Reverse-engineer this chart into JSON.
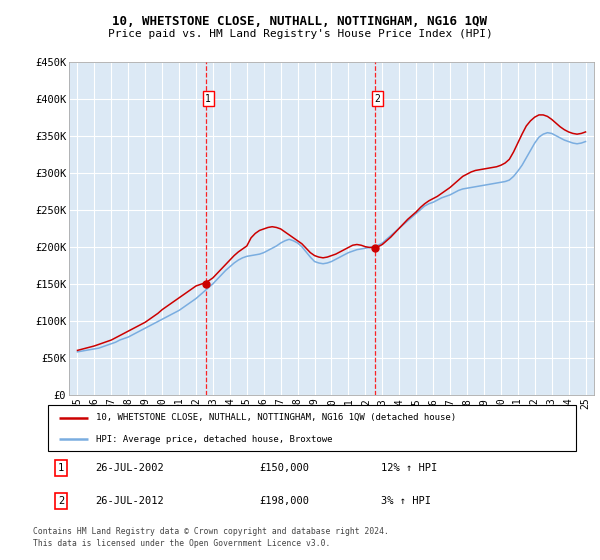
{
  "title": "10, WHETSTONE CLOSE, NUTHALL, NOTTINGHAM, NG16 1QW",
  "subtitle": "Price paid vs. HM Land Registry's House Price Index (HPI)",
  "legend_line1": "10, WHETSTONE CLOSE, NUTHALL, NOTTINGHAM, NG16 1QW (detached house)",
  "legend_line2": "HPI: Average price, detached house, Broxtowe",
  "transactions": [
    {
      "num": "1",
      "date": "26-JUL-2002",
      "price": "£150,000",
      "hpi": "12% ↑ HPI"
    },
    {
      "num": "2",
      "date": "26-JUL-2012",
      "price": "£198,000",
      "hpi": "3% ↑ HPI"
    }
  ],
  "footnote1": "Contains HM Land Registry data © Crown copyright and database right 2024.",
  "footnote2": "This data is licensed under the Open Government Licence v3.0.",
  "ylim": [
    0,
    450000
  ],
  "yticks": [
    0,
    50000,
    100000,
    150000,
    200000,
    250000,
    300000,
    350000,
    400000,
    450000
  ],
  "ytick_labels": [
    "£0",
    "£50K",
    "£100K",
    "£150K",
    "£200K",
    "£250K",
    "£300K",
    "£350K",
    "£400K",
    "£450K"
  ],
  "xlim_start": 1994.5,
  "xlim_end": 2025.5,
  "xticks": [
    1995,
    1996,
    1997,
    1998,
    1999,
    2000,
    2001,
    2002,
    2003,
    2004,
    2005,
    2006,
    2007,
    2008,
    2009,
    2010,
    2011,
    2012,
    2013,
    2014,
    2015,
    2016,
    2017,
    2018,
    2019,
    2020,
    2021,
    2022,
    2023,
    2024,
    2025
  ],
  "xtick_labels": [
    "95",
    "96",
    "97",
    "98",
    "99",
    "00",
    "01",
    "02",
    "03",
    "04",
    "05",
    "06",
    "07",
    "08",
    "09",
    "10",
    "11",
    "12",
    "13",
    "14",
    "15",
    "16",
    "17",
    "18",
    "19",
    "20",
    "21",
    "22",
    "23",
    "24",
    "25"
  ],
  "vline_x": [
    2002.57,
    2012.57
  ],
  "vline_labels": [
    "1",
    "2"
  ],
  "transaction_prices": [
    150000,
    198000
  ],
  "transaction_years": [
    2002.57,
    2012.57
  ],
  "plot_bg": "#dce9f5",
  "grid_color": "#ffffff",
  "red_line_color": "#cc0000",
  "blue_line_color": "#7aade0",
  "hpi_years": [
    1995.0,
    1995.25,
    1995.5,
    1995.75,
    1996.0,
    1996.25,
    1996.5,
    1996.75,
    1997.0,
    1997.25,
    1997.5,
    1997.75,
    1998.0,
    1998.25,
    1998.5,
    1998.75,
    1999.0,
    1999.25,
    1999.5,
    1999.75,
    2000.0,
    2000.25,
    2000.5,
    2000.75,
    2001.0,
    2001.25,
    2001.5,
    2001.75,
    2002.0,
    2002.25,
    2002.5,
    2002.75,
    2003.0,
    2003.25,
    2003.5,
    2003.75,
    2004.0,
    2004.25,
    2004.5,
    2004.75,
    2005.0,
    2005.25,
    2005.5,
    2005.75,
    2006.0,
    2006.25,
    2006.5,
    2006.75,
    2007.0,
    2007.25,
    2007.5,
    2007.75,
    2008.0,
    2008.25,
    2008.5,
    2008.75,
    2009.0,
    2009.25,
    2009.5,
    2009.75,
    2010.0,
    2010.25,
    2010.5,
    2010.75,
    2011.0,
    2011.25,
    2011.5,
    2011.75,
    2012.0,
    2012.25,
    2012.5,
    2012.75,
    2013.0,
    2013.25,
    2013.5,
    2013.75,
    2014.0,
    2014.25,
    2014.5,
    2014.75,
    2015.0,
    2015.25,
    2015.5,
    2015.75,
    2016.0,
    2016.25,
    2016.5,
    2016.75,
    2017.0,
    2017.25,
    2017.5,
    2017.75,
    2018.0,
    2018.25,
    2018.5,
    2018.75,
    2019.0,
    2019.25,
    2019.5,
    2019.75,
    2020.0,
    2020.25,
    2020.5,
    2020.75,
    2021.0,
    2021.25,
    2021.5,
    2021.75,
    2022.0,
    2022.25,
    2022.5,
    2022.75,
    2023.0,
    2023.25,
    2023.5,
    2023.75,
    2024.0,
    2024.25,
    2024.5,
    2024.75,
    2025.0
  ],
  "hpi_values": [
    58000,
    59000,
    60000,
    61000,
    62000,
    63000,
    65000,
    67000,
    69000,
    71000,
    74000,
    76000,
    78000,
    81000,
    84000,
    87000,
    90000,
    93000,
    96000,
    99000,
    102000,
    105000,
    108000,
    111000,
    114000,
    118000,
    122000,
    126000,
    130000,
    135000,
    140000,
    145000,
    150000,
    156000,
    162000,
    168000,
    173000,
    178000,
    182000,
    185000,
    187000,
    188000,
    189000,
    190000,
    192000,
    195000,
    198000,
    201000,
    205000,
    208000,
    210000,
    208000,
    205000,
    200000,
    193000,
    186000,
    180000,
    178000,
    177000,
    178000,
    180000,
    183000,
    186000,
    189000,
    192000,
    194000,
    196000,
    197000,
    198000,
    199000,
    200000,
    202000,
    205000,
    210000,
    215000,
    220000,
    225000,
    230000,
    235000,
    240000,
    245000,
    250000,
    255000,
    258000,
    260000,
    263000,
    266000,
    268000,
    270000,
    273000,
    276000,
    278000,
    279000,
    280000,
    281000,
    282000,
    283000,
    284000,
    285000,
    286000,
    287000,
    288000,
    290000,
    295000,
    302000,
    310000,
    320000,
    330000,
    340000,
    348000,
    352000,
    354000,
    353000,
    350000,
    347000,
    344000,
    342000,
    340000,
    339000,
    340000,
    342000
  ],
  "property_years": [
    1995.0,
    1995.25,
    1995.5,
    1995.75,
    1996.0,
    1996.25,
    1996.5,
    1996.75,
    1997.0,
    1997.25,
    1997.5,
    1997.75,
    1998.0,
    1998.25,
    1998.5,
    1998.75,
    1999.0,
    1999.25,
    1999.5,
    1999.75,
    2000.0,
    2000.25,
    2000.5,
    2000.75,
    2001.0,
    2001.25,
    2001.5,
    2001.75,
    2002.0,
    2002.25,
    2002.5,
    2002.75,
    2003.0,
    2003.25,
    2003.5,
    2003.75,
    2004.0,
    2004.25,
    2004.5,
    2004.75,
    2005.0,
    2005.25,
    2005.5,
    2005.75,
    2006.0,
    2006.25,
    2006.5,
    2006.75,
    2007.0,
    2007.25,
    2007.5,
    2007.75,
    2008.0,
    2008.25,
    2008.5,
    2008.75,
    2009.0,
    2009.25,
    2009.5,
    2009.75,
    2010.0,
    2010.25,
    2010.5,
    2010.75,
    2011.0,
    2011.25,
    2011.5,
    2011.75,
    2012.0,
    2012.25,
    2012.5,
    2012.75,
    2013.0,
    2013.25,
    2013.5,
    2013.75,
    2014.0,
    2014.25,
    2014.5,
    2014.75,
    2015.0,
    2015.25,
    2015.5,
    2015.75,
    2016.0,
    2016.25,
    2016.5,
    2016.75,
    2017.0,
    2017.25,
    2017.5,
    2017.75,
    2018.0,
    2018.25,
    2018.5,
    2018.75,
    2019.0,
    2019.25,
    2019.5,
    2019.75,
    2020.0,
    2020.25,
    2020.5,
    2020.75,
    2021.0,
    2021.25,
    2021.5,
    2021.75,
    2022.0,
    2022.25,
    2022.5,
    2022.75,
    2023.0,
    2023.25,
    2023.5,
    2023.75,
    2024.0,
    2024.25,
    2024.5,
    2024.75,
    2025.0
  ],
  "property_values": [
    60000,
    61500,
    63000,
    64500,
    66000,
    68000,
    70000,
    72000,
    74000,
    77000,
    80000,
    83000,
    86000,
    89000,
    92000,
    95000,
    98000,
    102000,
    106000,
    110000,
    115000,
    119000,
    123000,
    127000,
    131000,
    135000,
    139000,
    143000,
    147000,
    149000,
    151000,
    154000,
    158000,
    164000,
    170000,
    176000,
    182000,
    188000,
    193000,
    197000,
    201000,
    212000,
    218000,
    222000,
    224000,
    226000,
    227000,
    226000,
    224000,
    220000,
    216000,
    212000,
    208000,
    204000,
    198000,
    192000,
    188000,
    186000,
    185000,
    186000,
    188000,
    190000,
    193000,
    196000,
    199000,
    202000,
    203000,
    202000,
    200000,
    199000,
    199000,
    200000,
    203000,
    208000,
    213000,
    219000,
    225000,
    231000,
    237000,
    242000,
    247000,
    253000,
    258000,
    262000,
    265000,
    268000,
    272000,
    276000,
    280000,
    285000,
    290000,
    295000,
    298000,
    301000,
    303000,
    304000,
    305000,
    306000,
    307000,
    308000,
    310000,
    313000,
    318000,
    328000,
    340000,
    352000,
    363000,
    370000,
    375000,
    378000,
    378000,
    376000,
    372000,
    367000,
    362000,
    358000,
    355000,
    353000,
    352000,
    353000,
    355000
  ]
}
